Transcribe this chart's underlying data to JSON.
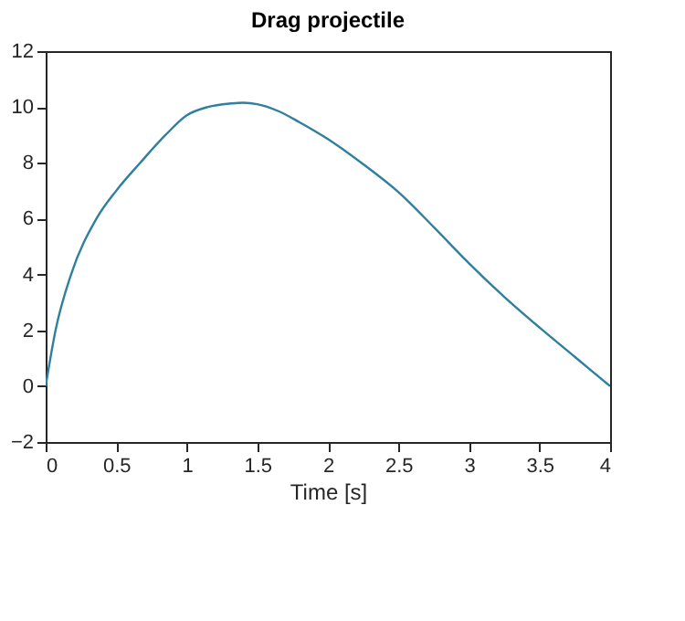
{
  "chart_data": {
    "type": "line",
    "title": "Drag projectile",
    "xlabel": "Time [s]",
    "x": [
      0,
      0.07,
      0.18,
      0.36,
      0.5,
      0.67,
      0.85,
      1.0,
      1.15,
      1.3,
      1.4,
      1.5,
      1.65,
      1.8,
      2.0,
      2.25,
      2.5,
      2.75,
      3.0,
      3.25,
      3.5,
      3.75,
      4.0
    ],
    "series": [
      {
        "color": "#2f7f9f",
        "values": [
          0,
          2,
          4,
          6,
          7.0,
          8,
          9.0,
          9.7,
          10.0,
          10.12,
          10.15,
          10.1,
          9.85,
          9.45,
          8.85,
          7.95,
          6.95,
          5.7,
          4.4,
          3.2,
          2.1,
          1.05,
          0
        ]
      }
    ],
    "xlim": [
      0,
      4
    ],
    "xticks": [
      0,
      0.5,
      1,
      1.5,
      2,
      2.5,
      3,
      3.5,
      4
    ],
    "ylim": [
      -2,
      12
    ],
    "yticks": [
      -2,
      0,
      2,
      4,
      6,
      8,
      10,
      12
    ],
    "grid": false,
    "marker": "none",
    "line_style": "solid"
  }
}
